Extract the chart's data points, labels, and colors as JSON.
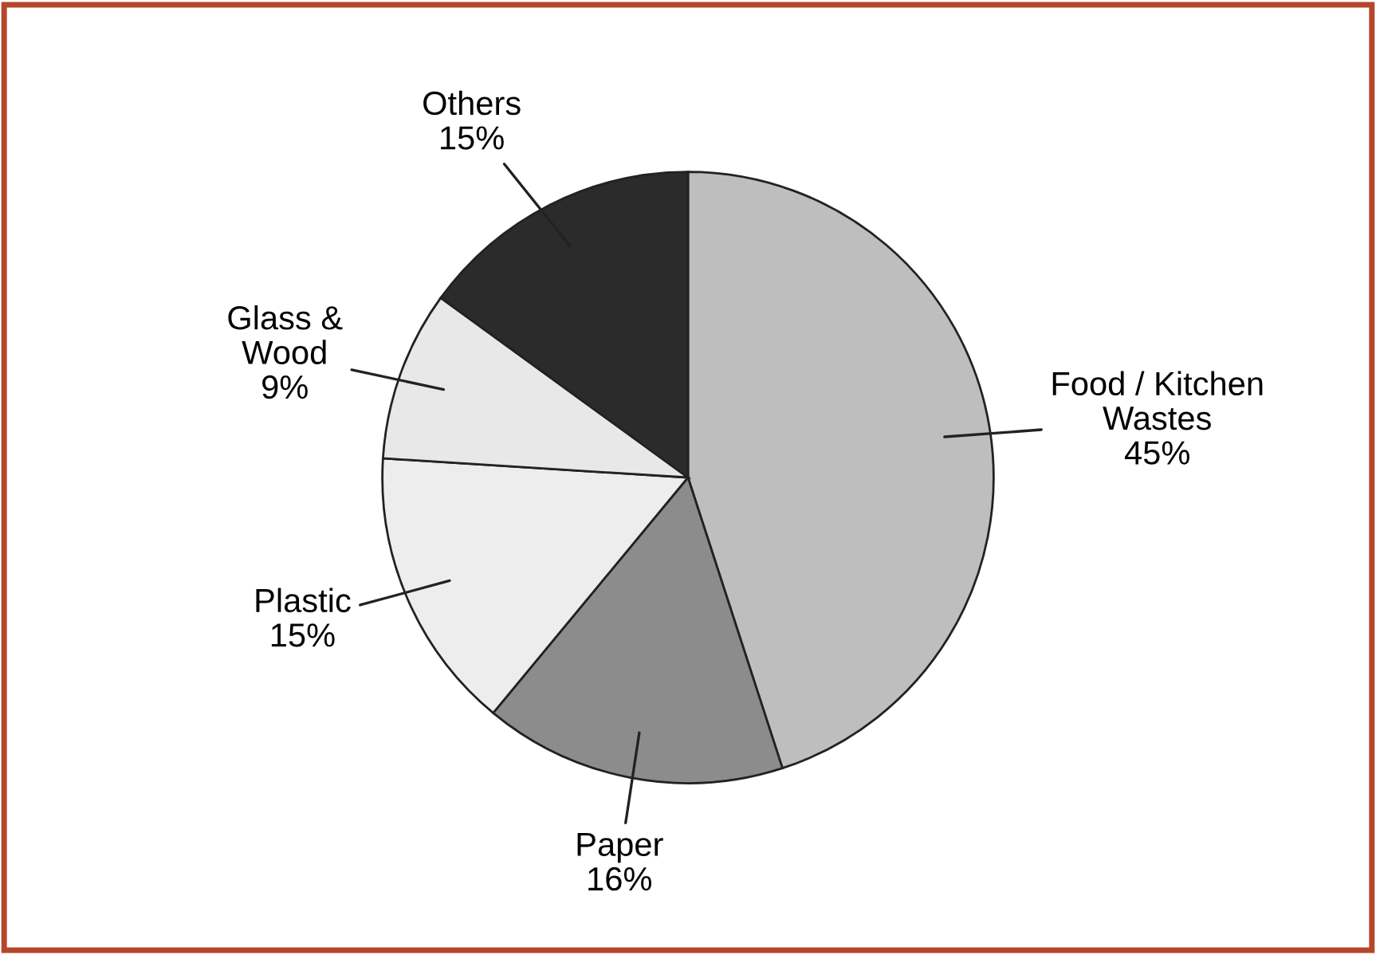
{
  "chart_data": {
    "type": "pie",
    "categories": [
      "Food / Kitchen\nWastes",
      "Paper",
      "Plastic",
      "Glass &\nWood",
      "Others"
    ],
    "values": [
      45,
      16,
      15,
      9,
      15
    ],
    "value_labels": [
      "45%",
      "16%",
      "15%",
      "9%",
      "15%"
    ],
    "colors": [
      "#bebebe",
      "#8c8c8c",
      "#ededed",
      "#e8e8e8",
      "#2b2b2b"
    ]
  }
}
